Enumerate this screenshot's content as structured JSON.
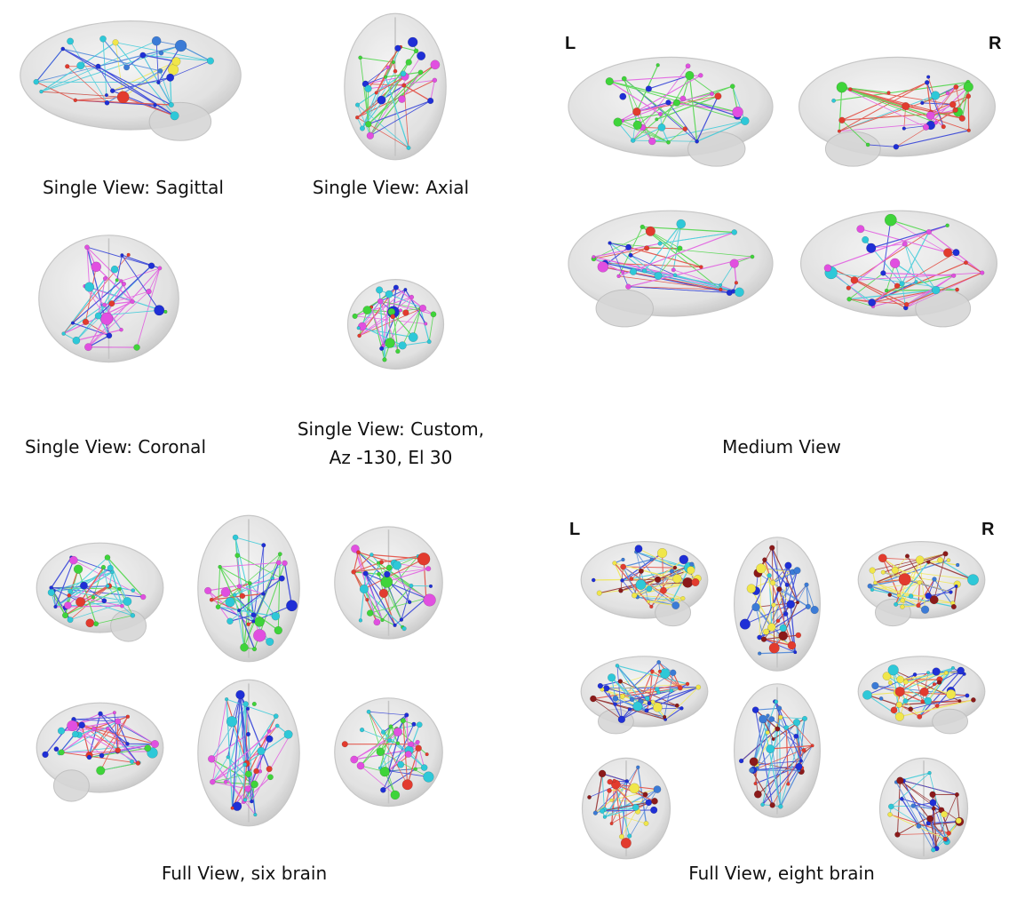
{
  "captions": {
    "sagittal": "Single View: Sagittal",
    "axial": "Single View: Axial",
    "coronal": "Single View: Coronal",
    "custom_line1": "Single View: Custom,",
    "custom_line2": "Az -130, El 30",
    "medium": "Medium View",
    "full_six": "Full View, six brain",
    "full_eight": "Full View, eight brain"
  },
  "hemisphere_labels": {
    "left": "L",
    "right": "R"
  },
  "colors": {
    "brain_shell": "#dcdcdc",
    "module_colors": [
      "#1f2fd6",
      "#2ec8d8",
      "#e23b2e",
      "#e14fe0",
      "#3fd43a",
      "#f0e64a",
      "#8b1a1a",
      "#3b7bd6"
    ]
  }
}
